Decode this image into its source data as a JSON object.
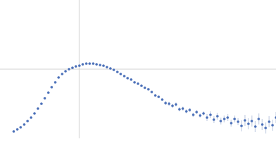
{
  "chart_data": {
    "type": "scatter",
    "x": [
      -95,
      -90,
      -85,
      -80,
      -75,
      -70,
      -65,
      -60,
      -55,
      -50,
      -45,
      -40,
      -35,
      -30,
      -25,
      -20,
      -15,
      -10,
      -5,
      0,
      5,
      10,
      15,
      20,
      25,
      30,
      35,
      40,
      45,
      50,
      55,
      60,
      65,
      70,
      75,
      80,
      85,
      90,
      95,
      100,
      105,
      110,
      115,
      120,
      125,
      130,
      135,
      140,
      145,
      150,
      155,
      160,
      165,
      170,
      175,
      180,
      185,
      190,
      195,
      200,
      205,
      210,
      215,
      220,
      225,
      230,
      235,
      240,
      245,
      250,
      255,
      260,
      265,
      270,
      275,
      280,
      285
    ],
    "values": [
      -90,
      -87,
      -84,
      -80,
      -75,
      -70,
      -64,
      -57,
      -50,
      -42,
      -34,
      -26,
      -19,
      -12,
      -7,
      -3,
      0,
      2,
      4,
      5,
      7,
      8,
      8,
      8,
      7,
      6,
      5,
      3,
      1,
      -1,
      -4,
      -7,
      -10,
      -13,
      -15,
      -19,
      -21,
      -24,
      -27,
      -29,
      -33,
      -38,
      -40,
      -44,
      -49,
      -50,
      -53,
      -51,
      -58,
      -57,
      -61,
      -59,
      -66,
      -62,
      -67,
      -64,
      -70,
      -66,
      -73,
      -68,
      -75,
      -72,
      -70,
      -78,
      -72,
      -76,
      -82,
      -74,
      -79,
      -75,
      -83,
      -72,
      -80,
      -85,
      -76,
      -81,
      -70
    ],
    "errors": [
      0.5,
      0.5,
      0.5,
      0.5,
      0.5,
      0.5,
      0.5,
      0.5,
      0.5,
      0.5,
      0.5,
      0.5,
      0.5,
      0.5,
      0.5,
      0.5,
      0.5,
      0.5,
      0.5,
      0.5,
      0.5,
      0.5,
      0.5,
      0.5,
      0.5,
      0.5,
      0.5,
      0.5,
      1.5,
      1.5,
      1.5,
      1.5,
      1.5,
      1.5,
      1.5,
      1.5,
      1.5,
      1.5,
      1.5,
      1.5,
      1.5,
      1.5,
      1.5,
      1.5,
      3,
      3,
      3,
      3,
      3,
      3,
      3,
      3,
      3,
      3,
      3,
      3,
      5,
      5,
      5,
      5,
      5,
      5,
      5,
      5,
      5,
      5,
      8,
      8,
      8,
      8,
      8,
      8,
      8,
      8,
      8,
      8,
      8
    ],
    "color": "#4a6fb8",
    "xlim": [
      -115,
      285
    ],
    "ylim": [
      -100,
      100
    ],
    "xticks": [
      0
    ],
    "yticks": [
      0
    ],
    "grid": true
  }
}
